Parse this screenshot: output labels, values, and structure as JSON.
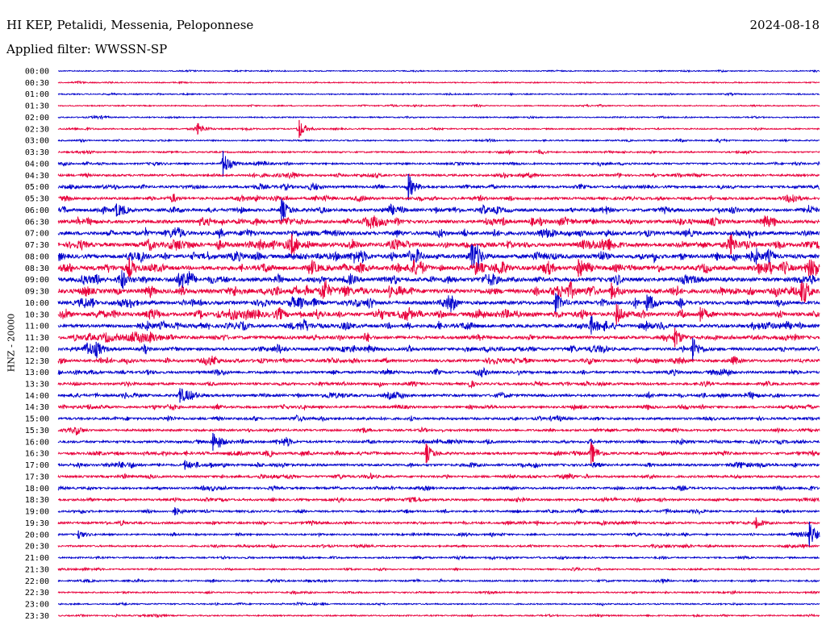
{
  "header": {
    "station": "HI KEP, Petalidi, Messenia, Peloponnese",
    "date": "2024-08-18",
    "filter": "Applied filter: WWSSN-SP",
    "channel": "HNZ - 20000"
  },
  "colors": {
    "even_trace": "#0000cc",
    "odd_trace": "#e8003c"
  },
  "chart_data": {
    "type": "line",
    "title": "HI KEP, Petalidi, Messenia, Peloponnese",
    "ylabel": "HNZ - 20000",
    "row_labels": [
      "00:00",
      "00:30",
      "01:00",
      "01:30",
      "02:00",
      "02:30",
      "03:00",
      "03:30",
      "04:00",
      "04:30",
      "05:00",
      "05:30",
      "06:00",
      "06:30",
      "07:00",
      "07:30",
      "08:00",
      "08:30",
      "09:00",
      "09:30",
      "10:00",
      "10:30",
      "11:00",
      "11:30",
      "12:00",
      "12:30",
      "13:00",
      "13:30",
      "14:00",
      "14:30",
      "15:00",
      "15:30",
      "16:00",
      "16:30",
      "17:00",
      "17:30",
      "18:00",
      "18:30",
      "19:00",
      "19:30",
      "20:00",
      "20:30",
      "21:00",
      "21:30",
      "22:00",
      "22:30",
      "23:00",
      "23:30"
    ],
    "row_minutes": 30,
    "noise_level": [
      0.5,
      0.5,
      0.6,
      0.6,
      0.6,
      0.8,
      0.8,
      1,
      1.2,
      1.6,
      1.8,
      2,
      2.4,
      2.8,
      3,
      3.4,
      3.4,
      3.6,
      3.4,
      3.8,
      3,
      3.2,
      2.8,
      2.6,
      2.4,
      2.2,
      2,
      1.8,
      2,
      1.8,
      1.8,
      1.6,
      1.8,
      1.8,
      1.8,
      1.6,
      1.6,
      1.6,
      1.4,
      1.6,
      1.2,
      1.2,
      1,
      0.9,
      1,
      0.9,
      0.8,
      0.8
    ],
    "events": [
      {
        "row": 5,
        "minute": 5.5,
        "amplitude": 7
      },
      {
        "row": 5,
        "minute": 9.5,
        "amplitude": 11
      },
      {
        "row": 8,
        "minute": 6.5,
        "amplitude": 16
      },
      {
        "row": 10,
        "minute": 13.8,
        "amplitude": 16
      },
      {
        "row": 12,
        "minute": 2.3,
        "amplitude": 8
      },
      {
        "row": 12,
        "minute": 8.8,
        "amplitude": 14
      },
      {
        "row": 15,
        "minute": 9.2,
        "amplitude": 12
      },
      {
        "row": 15,
        "minute": 26.5,
        "amplitude": 12
      },
      {
        "row": 16,
        "minute": 16.3,
        "amplitude": 15
      },
      {
        "row": 17,
        "minute": 2.8,
        "amplitude": 10
      },
      {
        "row": 17,
        "minute": 10.0,
        "amplitude": 8
      },
      {
        "row": 17,
        "minute": 20.5,
        "amplitude": 11
      },
      {
        "row": 19,
        "minute": 10.5,
        "amplitude": 7
      },
      {
        "row": 19,
        "minute": 21.8,
        "amplitude": 10
      },
      {
        "row": 19,
        "minute": 29.3,
        "amplitude": 12
      },
      {
        "row": 20,
        "minute": 19.6,
        "amplitude": 12
      },
      {
        "row": 20,
        "minute": 23.2,
        "amplitude": 10
      },
      {
        "row": 21,
        "minute": 22.0,
        "amplitude": 13
      },
      {
        "row": 21,
        "minute": 25.3,
        "amplitude": 9
      },
      {
        "row": 22,
        "minute": 21.0,
        "amplitude": 8
      },
      {
        "row": 23,
        "minute": 24.3,
        "amplitude": 12
      },
      {
        "row": 24,
        "minute": 1.5,
        "amplitude": 9
      },
      {
        "row": 24,
        "minute": 25.0,
        "amplitude": 14
      },
      {
        "row": 28,
        "minute": 4.8,
        "amplitude": 9
      },
      {
        "row": 32,
        "minute": 6.1,
        "amplitude": 11
      },
      {
        "row": 33,
        "minute": 14.5,
        "amplitude": 12
      },
      {
        "row": 33,
        "minute": 21.0,
        "amplitude": 14
      },
      {
        "row": 34,
        "minute": 5.0,
        "amplitude": 6
      },
      {
        "row": 38,
        "minute": 4.6,
        "amplitude": 5
      },
      {
        "row": 39,
        "minute": 27.5,
        "amplitude": 7
      },
      {
        "row": 40,
        "minute": 0.8,
        "amplitude": 5
      },
      {
        "row": 40,
        "minute": 29.6,
        "amplitude": 16
      }
    ],
    "grid": false
  }
}
